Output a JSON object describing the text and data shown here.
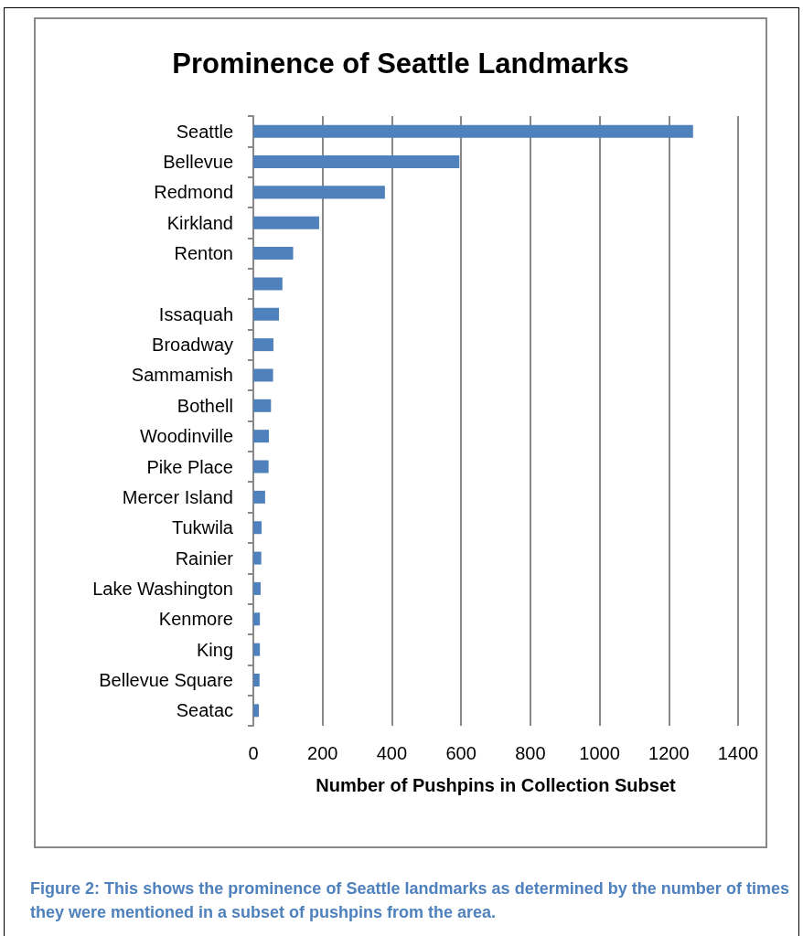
{
  "chart_data": {
    "type": "bar",
    "orientation": "horizontal",
    "title": "Prominence of Seattle Landmarks",
    "xlabel": "Number of Pushpins in Collection Subset",
    "categories": [
      "Seattle",
      "Bellevue",
      "Redmond",
      "Kirkland",
      "Renton",
      null,
      "Issaquah",
      "Broadway",
      "Sammamish",
      "Bothell",
      "Woodinville",
      "Pike Place",
      "Mercer Island",
      "Tukwila",
      "Rainier",
      "Lake Washington",
      "Kenmore",
      "King",
      "Bellevue Square",
      "Seatac"
    ],
    "values": [
      1270,
      595,
      380,
      190,
      115,
      84,
      74,
      58,
      57,
      51,
      45,
      44,
      34,
      24,
      23,
      21,
      19,
      19,
      18,
      16
    ],
    "color": "#4f81bd",
    "xlim": [
      0,
      1400
    ],
    "xticks": [
      0,
      200,
      400,
      600,
      800,
      1000,
      1200,
      1400
    ],
    "grid": "x",
    "annotations": [
      "Figure 2: This shows the prominence of Seattle landmarks as determined by the number of times they were mentioned in a subset of pushpins from the area."
    ]
  }
}
